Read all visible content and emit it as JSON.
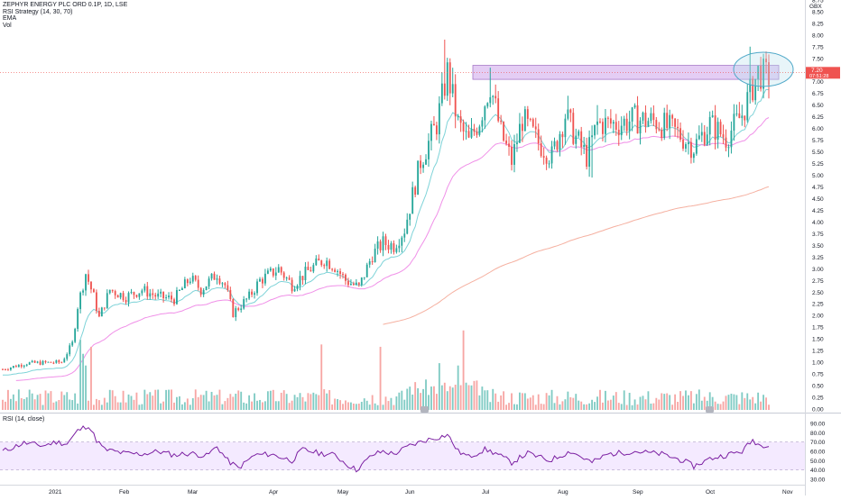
{
  "legend": {
    "symbol": "ZEPHYR ENERGY PLC ORD 0.1P, 1D, LSE",
    "strategy": "RSI Strategy (14, 30, 70)",
    "ema": "EMA",
    "vol": "Vol"
  },
  "price_axis": {
    "currency": "GBX",
    "last_price_label": "7.20",
    "countdown_label": "07:51:28"
  },
  "rsi_pane": {
    "label": "RSI (14, close)"
  },
  "colors": {
    "up": "#26a69a",
    "down": "#ef5350",
    "up_vol": "#80cbc4",
    "down_vol": "#f7a6a4",
    "ema_fast": "#7ed3d8",
    "ema_mid": "#f090e8",
    "ema_slow": "#f5b0a0",
    "rsi_line": "#7b1fa2",
    "rsi_band": "#ecdcff",
    "zone_fill": "#d9b8f0",
    "zone_stroke": "#a678c8",
    "ellipse": "#4fa8c8",
    "last_price": "#ef5350"
  },
  "chart_data": {
    "type": "candlestick",
    "title": "ZEPHYR ENERGY PLC ORD 0.1P, 1D, LSE",
    "ylabel": "GBX",
    "ylim": [
      0,
      8.75
    ],
    "y_ticks": [
      "0.00",
      "0.25",
      "0.50",
      "0.75",
      "1.00",
      "1.25",
      "1.50",
      "1.75",
      "2.00",
      "2.25",
      "2.50",
      "2.75",
      "3.00",
      "3.25",
      "3.50",
      "3.75",
      "4.00",
      "4.25",
      "4.50",
      "4.75",
      "5.00",
      "5.25",
      "5.50",
      "5.75",
      "6.00",
      "6.25",
      "6.50",
      "6.75",
      "7.00",
      "7.25",
      "7.50",
      "7.75",
      "8.00",
      "8.25",
      "8.50",
      "8.75"
    ],
    "x_labels": [
      "2021",
      "Feb",
      "Mar",
      "Apr",
      "May",
      "Jun",
      "Jul",
      "Aug",
      "Sep",
      "Oct",
      "Nov"
    ],
    "resistance_zone": [
      7.05,
      7.35
    ],
    "last_price": 7.2,
    "key_points": [
      {
        "date": "2021-01-04",
        "close": 0.85
      },
      {
        "date": "2021-01-29",
        "close": 3.05
      },
      {
        "date": "2021-03-31",
        "close": 2.05
      },
      {
        "date": "2021-04-22",
        "close": 3.1
      },
      {
        "date": "2021-05-17",
        "close": 2.6
      },
      {
        "date": "2021-06-01",
        "close": 3.4
      },
      {
        "date": "2021-06-25",
        "close": 7.2
      },
      {
        "date": "2021-07-29",
        "close": 5.2
      },
      {
        "date": "2021-09-24",
        "close": 5.6
      },
      {
        "date": "2021-10-18",
        "close": 7.2
      }
    ],
    "indicators": [
      "EMA (fast)",
      "EMA (medium)",
      "EMA (slow)"
    ],
    "volume_ylim": [
      0,
      1.75
    ],
    "rsi": {
      "label": "RSI (14, close)",
      "ylim": [
        30,
        90
      ],
      "band": [
        40,
        70
      ],
      "ticks": [
        "30.00",
        "40.00",
        "50.00",
        "60.00",
        "70.00",
        "80.00",
        "90.00"
      ]
    },
    "grid": false
  }
}
